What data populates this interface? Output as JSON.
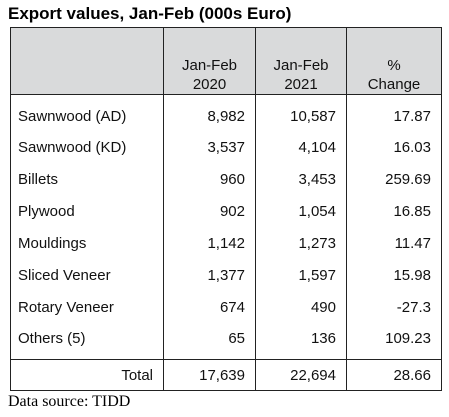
{
  "title": "Export values,  Jan-Feb (000s Euro)",
  "columns": [
    {
      "line1": "",
      "line2": ""
    },
    {
      "line1": "Jan-Feb",
      "line2": "2020"
    },
    {
      "line1": "Jan-Feb",
      "line2": "2021"
    },
    {
      "line1": "%",
      "line2": "Change"
    }
  ],
  "rows": [
    {
      "label": "Sawnwood (AD)",
      "v2020": "8,982",
      "v2021": "10,587",
      "change": "17.87"
    },
    {
      "label": "Sawnwood (KD)",
      "v2020": "3,537",
      "v2021": "4,104",
      "change": "16.03"
    },
    {
      "label": "Billets",
      "v2020": "960",
      "v2021": "3,453",
      "change": "259.69"
    },
    {
      "label": "Plywood",
      "v2020": "902",
      "v2021": "1,054",
      "change": "16.85"
    },
    {
      "label": "Mouldings",
      "v2020": "1,142",
      "v2021": "1,273",
      "change": "11.47"
    },
    {
      "label": "Sliced Veneer",
      "v2020": "1,377",
      "v2021": "1,597",
      "change": "15.98"
    },
    {
      "label": "Rotary Veneer",
      "v2020": "674",
      "v2021": "490",
      "change": "-27.3"
    },
    {
      "label": "Others (5)",
      "v2020": "65",
      "v2021": "136",
      "change": "109.23"
    }
  ],
  "total": {
    "label": "Total",
    "v2020": "17,639",
    "v2021": "22,694",
    "change": "28.66"
  },
  "source": "Data source: TIDD"
}
